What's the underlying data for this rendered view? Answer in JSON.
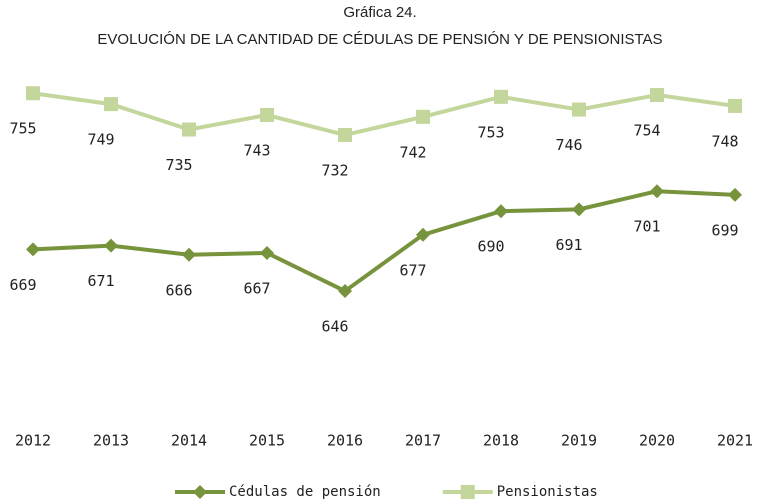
{
  "chart_data": {
    "type": "line",
    "title": "Gráfica 24.",
    "subtitle": "EVOLUCIÓN DE LA CANTIDAD DE CÉDULAS DE PENSIÓN Y DE PENSIONISTAS",
    "categories": [
      "2012",
      "2013",
      "2014",
      "2015",
      "2016",
      "2017",
      "2018",
      "2019",
      "2020",
      "2021"
    ],
    "series": [
      {
        "name": "Cédulas de pensión",
        "color": "#77933c",
        "marker": "diamond",
        "values": [
          669,
          671,
          666,
          667,
          646,
          677,
          690,
          691,
          701,
          699
        ]
      },
      {
        "name": "Pensionistas",
        "color": "#c3d69b",
        "marker": "square",
        "values": [
          755,
          749,
          735,
          743,
          732,
          742,
          753,
          746,
          754,
          748
        ]
      }
    ],
    "ylim": [
      570,
      770
    ],
    "legend": "bottom"
  }
}
